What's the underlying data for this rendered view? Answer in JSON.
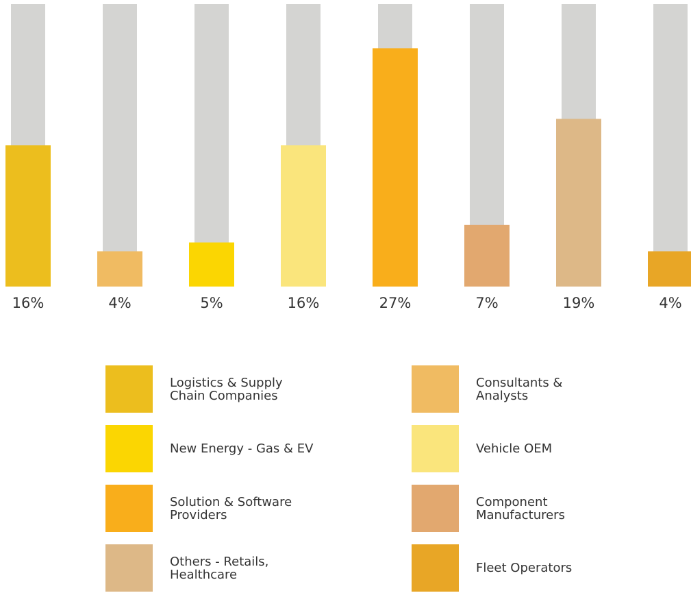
{
  "chart_data": {
    "type": "bar",
    "categories": [
      "Logistics & Supply Chain Companies",
      "Consultants & Analysts",
      "New Energy - Gas & EV",
      "Vehicle OEM",
      "Solution & Software Providers",
      "Component Manufacturers",
      "Others - Retails, Healthcare",
      "Fleet Operators"
    ],
    "values": [
      16,
      4,
      5,
      16,
      27,
      7,
      19,
      4
    ],
    "value_labels": [
      "16%",
      "4%",
      "5%",
      "16%",
      "27%",
      "7%",
      "19%",
      "4%"
    ],
    "colors": [
      "#ecbe1e",
      "#f0bb62",
      "#fbd602",
      "#fae57c",
      "#f9ae1b",
      "#e2a86f",
      "#ddb887",
      "#e8a626"
    ],
    "ylim": [
      0,
      32
    ]
  }
}
